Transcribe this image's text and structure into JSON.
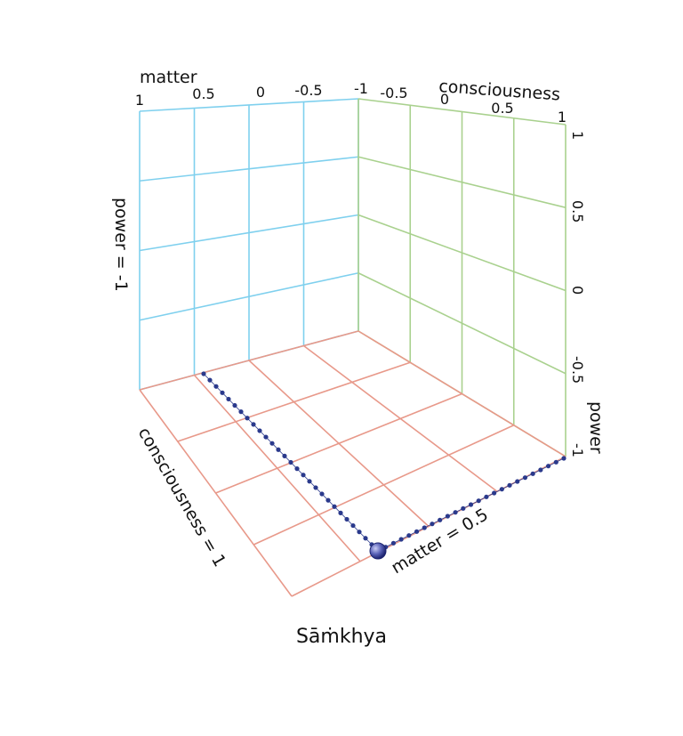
{
  "caption": "Sāṁkhya",
  "back_wall": {
    "axis_title": "matter",
    "ticks": [
      "1",
      "0.5",
      "0",
      "-0.5",
      "-1"
    ],
    "side_label": "power = -1",
    "color": "#7fd0ee"
  },
  "side_wall": {
    "axis_title": "consciousness",
    "ticks": [
      "-0.5",
      "0",
      "0.5",
      "1"
    ],
    "color": "#a9d18e"
  },
  "power_axis": {
    "title": "power",
    "ticks": [
      "1",
      "0.5",
      "0",
      "-0.5",
      "-1"
    ]
  },
  "floor": {
    "left_label": "consciousness = 1",
    "right_label": "matter = 0.5",
    "color": "#e8998a"
  },
  "point": {
    "matter": 0.5,
    "consciousness": 1,
    "power": -1,
    "color": "#2b3a8c"
  }
}
